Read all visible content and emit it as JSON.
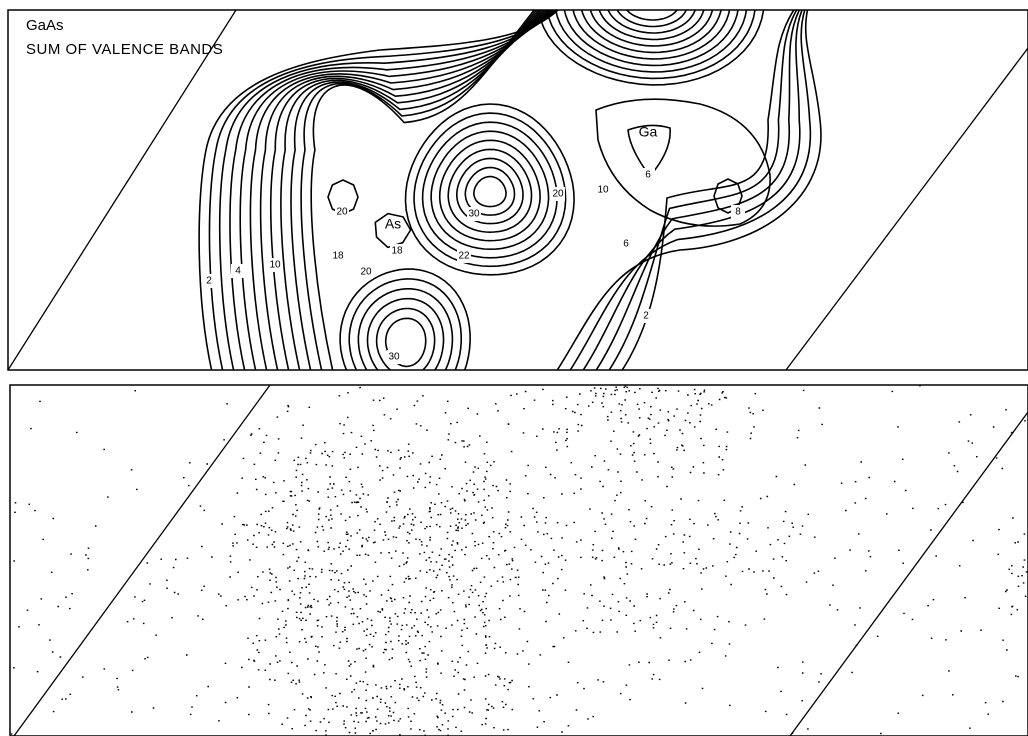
{
  "figure": {
    "title": "GaAs",
    "subtitle": "SUM OF VALENCE BANDS",
    "atom_labels": [
      "Ga",
      "As"
    ],
    "contour_labels": [
      2,
      4,
      10,
      18,
      20,
      20,
      18,
      30,
      22,
      20,
      10,
      6,
      6,
      8,
      2,
      30
    ]
  }
}
